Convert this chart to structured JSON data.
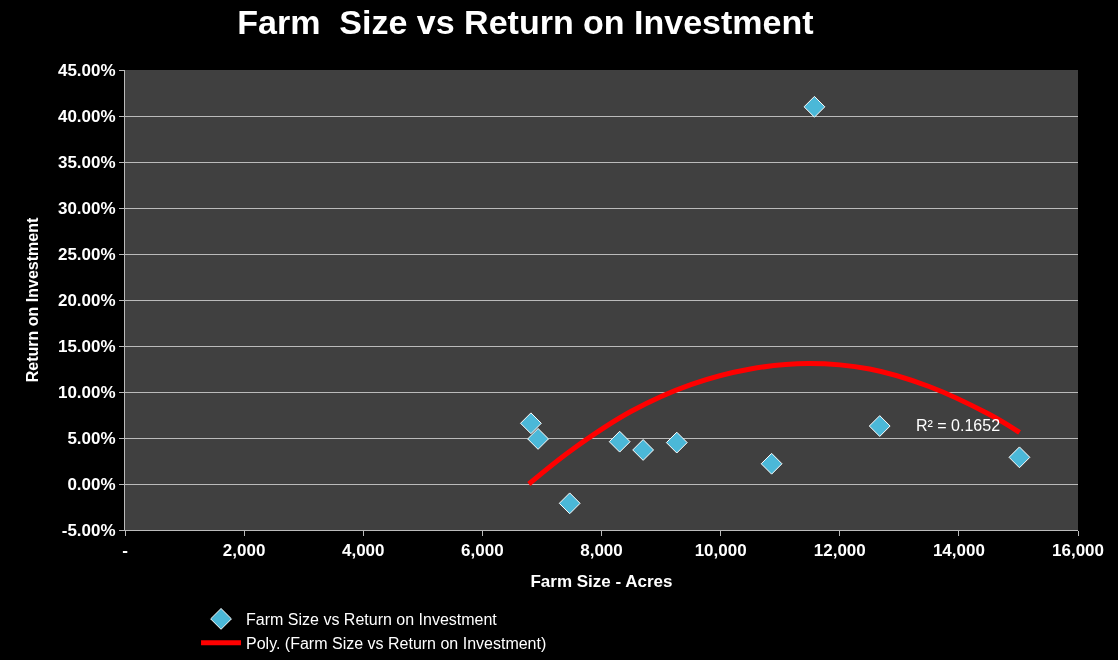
{
  "chart_data": {
    "type": "scatter",
    "title": "Farm  Size vs Return on Investment",
    "xlabel": "Farm Size - Acres",
    "ylabel": "Return on Investment",
    "series": [
      {
        "name": "Farm Size vs Return on Investment",
        "color": "#4bb8d8",
        "marker": "diamond",
        "x": [
          6815,
          6935,
          7466,
          8305,
          8699,
          9264,
          10856,
          11575,
          12671,
          15017
        ],
        "values": [
          6.6,
          4.9,
          -2.1,
          4.6,
          3.7,
          4.5,
          2.2,
          41.0,
          6.3,
          2.9
        ]
      },
      {
        "name": "Poly. (Farm Size vs Return on Investment)",
        "type": "line",
        "color": "#ff0000",
        "marker": "none",
        "x": [
          6780,
          7500,
          8500,
          9500,
          10500,
          11470,
          12500,
          13500,
          14500,
          15020
        ],
        "values": [
          0.0,
          3.7,
          7.9,
          10.8,
          12.5,
          13.1,
          12.5,
          10.6,
          7.6,
          5.6
        ]
      }
    ],
    "annotations": [
      "R² = 0.1652"
    ],
    "xlim": [
      0,
      16000
    ],
    "xticks": [
      {
        "value": 0,
        "label": "-"
      },
      {
        "value": 2000,
        "label": "2,000"
      },
      {
        "value": 4000,
        "label": "4,000"
      },
      {
        "value": 6000,
        "label": "6,000"
      },
      {
        "value": 8000,
        "label": "8,000"
      },
      {
        "value": 10000,
        "label": "10,000"
      },
      {
        "value": 12000,
        "label": "12,000"
      },
      {
        "value": 14000,
        "label": "14,000"
      },
      {
        "value": 16000,
        "label": "16,000"
      }
    ],
    "ylim": [
      -5,
      45
    ],
    "yticks": [
      {
        "value": -5,
        "label": "-5.00%"
      },
      {
        "value": 0,
        "label": "0.00%"
      },
      {
        "value": 5,
        "label": "5.00%"
      },
      {
        "value": 10,
        "label": "10.00%"
      },
      {
        "value": 15,
        "label": "15.00%"
      },
      {
        "value": 20,
        "label": "20.00%"
      },
      {
        "value": 25,
        "label": "25.00%"
      },
      {
        "value": 30,
        "label": "30.00%"
      },
      {
        "value": 35,
        "label": "35.00%"
      },
      {
        "value": 40,
        "label": "40.00%"
      },
      {
        "value": 45,
        "label": "45.00%"
      }
    ],
    "grid": "y",
    "legend": "bottom"
  }
}
